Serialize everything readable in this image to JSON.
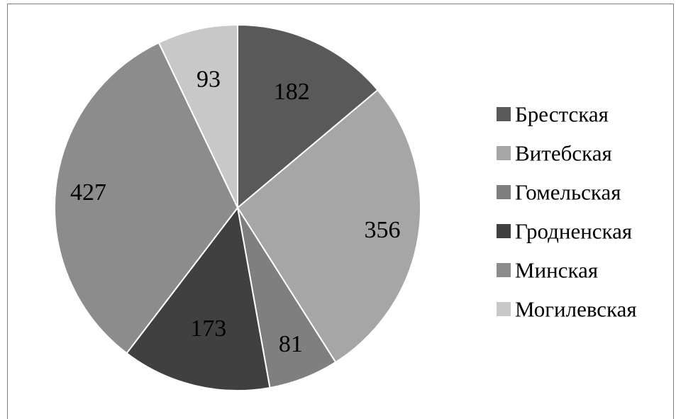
{
  "chart_data": {
    "type": "pie",
    "categories": [
      "Брестская",
      "Витебская",
      "Гомельская",
      "Гродненская",
      "Минская",
      "Могилевская"
    ],
    "values": [
      182,
      356,
      81,
      173,
      427,
      93
    ],
    "colors": [
      "#595959",
      "#a6a6a6",
      "#7f7f7f",
      "#404040",
      "#8c8c8c",
      "#c8c8c8"
    ],
    "data_labels": [
      "182",
      "356",
      "81",
      "173",
      "427",
      "93"
    ],
    "legend": {
      "placement": "right"
    },
    "title": ""
  }
}
